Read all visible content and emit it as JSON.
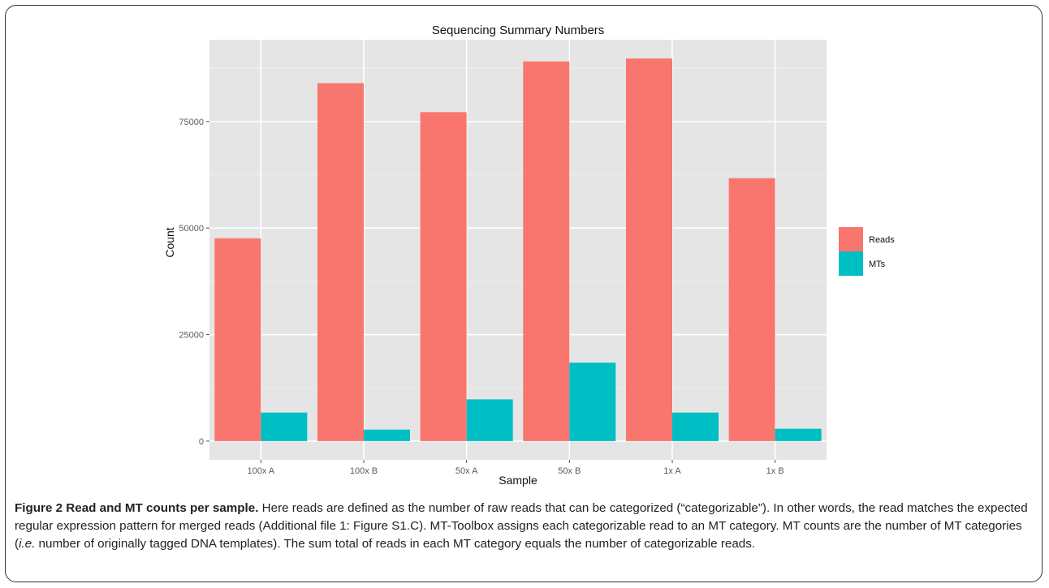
{
  "chart_data": {
    "type": "bar",
    "title": "Sequencing Summary Numbers",
    "xlabel": "Sample",
    "ylabel": "Count",
    "categories": [
      "100x A",
      "100x B",
      "50x A",
      "50x B",
      "1x A",
      "1x B"
    ],
    "series": [
      {
        "name": "Reads",
        "color": "#F8766D",
        "values": [
          47600,
          84000,
          77200,
          89100,
          89800,
          61700
        ]
      },
      {
        "name": "MTs",
        "color": "#00BFC4",
        "values": [
          6700,
          2700,
          9800,
          18400,
          6700,
          2900
        ]
      }
    ],
    "yticks": [
      0,
      25000,
      50000,
      75000
    ],
    "ylim": [
      -4400,
      94200
    ],
    "grid": true,
    "legend_position": "right"
  },
  "caption": {
    "title": "Figure 2 Read and MT counts per sample.",
    "part1": " Here reads are defined as the number of raw reads that can be categorized (“categorizable”). In other words, the read matches the expected regular expression pattern for merged reads (Additional file 1: Figure S1.C). MT-Toolbox assigns each categorizable read to an MT category. MT counts are the number of MT categories (",
    "ie": "i.e.",
    "part2": " number of originally tagged DNA templates). The sum total of reads in each MT category equals the number of categorizable reads."
  }
}
